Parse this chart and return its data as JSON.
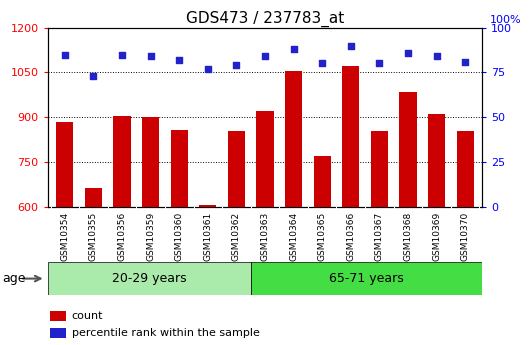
{
  "title": "GDS473 / 237783_at",
  "samples": [
    "GSM10354",
    "GSM10355",
    "GSM10356",
    "GSM10359",
    "GSM10360",
    "GSM10361",
    "GSM10362",
    "GSM10363",
    "GSM10364",
    "GSM10365",
    "GSM10366",
    "GSM10367",
    "GSM10368",
    "GSM10369",
    "GSM10370"
  ],
  "counts": [
    885,
    665,
    905,
    900,
    857,
    608,
    855,
    920,
    1055,
    770,
    1070,
    855,
    985,
    910,
    855
  ],
  "percentiles": [
    85,
    73,
    85,
    84,
    82,
    77,
    79,
    84,
    88,
    80,
    90,
    80,
    86,
    84,
    81
  ],
  "group1_label": "20-29 years",
  "group2_label": "65-71 years",
  "group1_count": 7,
  "group2_count": 8,
  "ylim_left": [
    600,
    1200
  ],
  "ylim_right": [
    0,
    100
  ],
  "yticks_left": [
    600,
    750,
    900,
    1050,
    1200
  ],
  "yticks_right": [
    0,
    25,
    50,
    75,
    100
  ],
  "bar_color": "#cc0000",
  "dot_color": "#2222cc",
  "group1_bg": "#aaeaaa",
  "group2_bg": "#44dd44",
  "xtick_bg": "#cccccc",
  "legend_bar_label": "count",
  "legend_dot_label": "percentile rank within the sample",
  "age_label": "age"
}
